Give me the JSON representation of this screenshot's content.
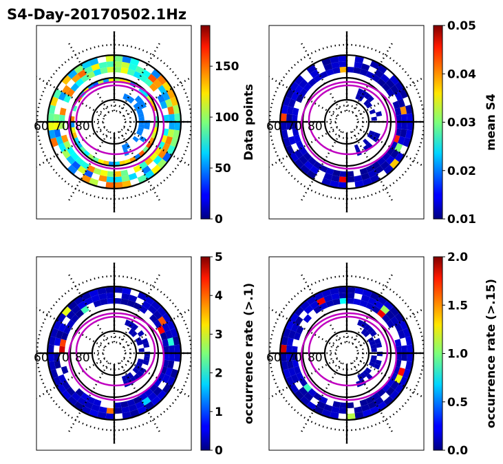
{
  "chart_data": {
    "type": "heatmap",
    "title": "S4-Day-20170502.1Hz",
    "projection": "polar (magnetic latitude / local time)",
    "latitude_labels": [
      "60",
      "70",
      "80"
    ],
    "subplots": [
      {
        "colorbar_label": "Data points",
        "clim": [
          0,
          190
        ],
        "ticks": [
          0,
          50,
          100,
          150
        ],
        "tick_labels": [
          "0",
          "50",
          "100",
          "150"
        ],
        "typical_level": 0.45
      },
      {
        "colorbar_label": "mean S4",
        "clim": [
          0.01,
          0.05
        ],
        "ticks": [
          0.01,
          0.02,
          0.03,
          0.04,
          0.05
        ],
        "tick_labels": [
          "0.01",
          "0.02",
          "0.03",
          "0.04",
          "0.05"
        ],
        "typical_level": 0.03
      },
      {
        "colorbar_label": "occurrence rate (>.1)",
        "clim": [
          0,
          5
        ],
        "ticks": [
          0,
          1,
          2,
          3,
          4,
          5
        ],
        "tick_labels": [
          "0",
          "1",
          "2",
          "3",
          "4",
          "5"
        ],
        "typical_level": 0.02
      },
      {
        "colorbar_label": "occurrence rate (>.15)",
        "clim": [
          0,
          2
        ],
        "ticks": [
          0,
          0.5,
          1,
          1.5,
          2
        ],
        "tick_labels": [
          "0.0",
          "0.5",
          "1.0",
          "1.5",
          "2.0"
        ],
        "typical_level": 0.02
      }
    ]
  },
  "colors": {
    "oval": "#c000c0",
    "grid": "#000000"
  }
}
